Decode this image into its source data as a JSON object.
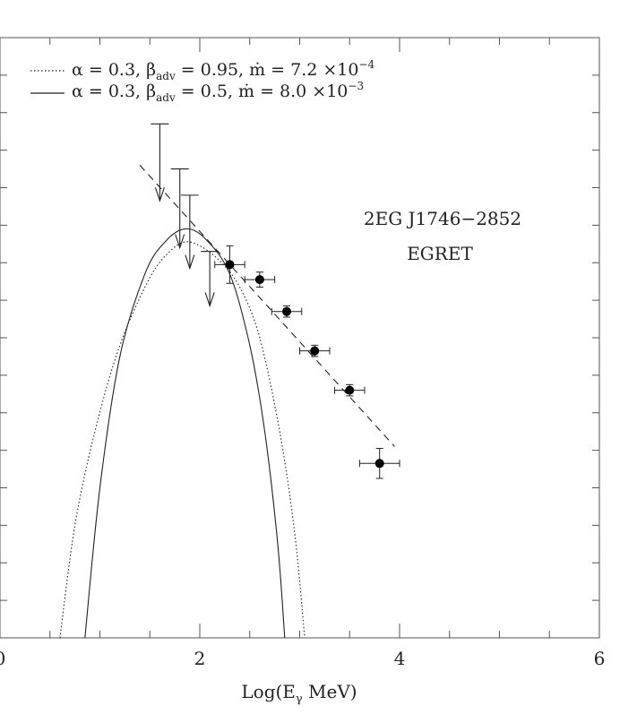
{
  "chart_data": {
    "type": "scatter",
    "title": "",
    "xlabel": "Log(E",
    "xlabel_sub": "γ",
    "xlabel_tail": " MeV)",
    "ylabel": "",
    "xlim": [
      0,
      6
    ],
    "ylim": [
      0,
      16
    ],
    "x_ticks": [
      "0",
      "2",
      "4",
      "6"
    ],
    "x_tick_values": [
      0,
      2,
      4,
      6
    ],
    "annotation_lines": [
      "2EG J1746−2852",
      "EGRET"
    ],
    "legend": {
      "placement": "top-left",
      "entries": [
        {
          "style": "dotted",
          "text": "α  =  0.3,  β",
          "sub": "adv",
          "text2": "  =  0.95,  ṁ  =  7.2  ×10",
          "sup": "−4"
        },
        {
          "style": "solid",
          "text": "α  =  0.3,  β",
          "sub": "adv",
          "text2": "  =  0.5,  ṁ  =  8.0  ×10",
          "sup": "−3"
        }
      ]
    },
    "series": [
      {
        "kind": "data_points",
        "points": [
          {
            "x": 2.3,
            "y": 9.95,
            "xerr": 0.15,
            "yerr": 0.5
          },
          {
            "x": 2.6,
            "y": 9.55,
            "xerr": 0.15,
            "yerr": 0.2
          },
          {
            "x": 2.87,
            "y": 8.7,
            "xerr": 0.15,
            "yerr": 0.15
          },
          {
            "x": 3.15,
            "y": 7.65,
            "xerr": 0.15,
            "yerr": 0.15
          },
          {
            "x": 3.5,
            "y": 6.6,
            "xerr": 0.15,
            "yerr": 0.15
          },
          {
            "x": 3.8,
            "y": 4.65,
            "xerr": 0.2,
            "yerr": 0.4
          }
        ]
      },
      {
        "kind": "upper_limits",
        "points": [
          {
            "x": 1.6,
            "y_top": 13.7,
            "y_arrow": 11.65
          },
          {
            "x": 1.8,
            "y_top": 12.5,
            "y_arrow": 10.4
          },
          {
            "x": 1.9,
            "y_top": 11.8,
            "y_arrow": 9.85
          },
          {
            "x": 2.1,
            "y_top": 10.3,
            "y_arrow": 8.85
          }
        ]
      },
      {
        "kind": "power_law_fit",
        "style": "dashed",
        "points": [
          [
            1.4,
            12.6
          ],
          [
            3.95,
            5.1
          ]
        ]
      },
      {
        "kind": "model",
        "style": "dotted",
        "points": [
          [
            0.6,
            0
          ],
          [
            0.75,
            3
          ],
          [
            0.95,
            5.5
          ],
          [
            1.2,
            7.8
          ],
          [
            1.5,
            9.6
          ],
          [
            1.7,
            10.3
          ],
          [
            1.85,
            10.55
          ],
          [
            2.0,
            10.45
          ],
          [
            2.2,
            10.05
          ],
          [
            2.4,
            9.35
          ],
          [
            2.6,
            8.0
          ],
          [
            2.8,
            5.5
          ],
          [
            2.95,
            2.8
          ],
          [
            3.05,
            0
          ]
        ]
      },
      {
        "kind": "model",
        "style": "solid",
        "points": [
          [
            0.85,
            0
          ],
          [
            1.0,
            4
          ],
          [
            1.2,
            7.5
          ],
          [
            1.45,
            9.7
          ],
          [
            1.65,
            10.55
          ],
          [
            1.85,
            10.9
          ],
          [
            2.05,
            10.65
          ],
          [
            2.3,
            9.7
          ],
          [
            2.5,
            7.8
          ],
          [
            2.65,
            5.5
          ],
          [
            2.78,
            2.5
          ],
          [
            2.85,
            0
          ]
        ]
      }
    ]
  }
}
